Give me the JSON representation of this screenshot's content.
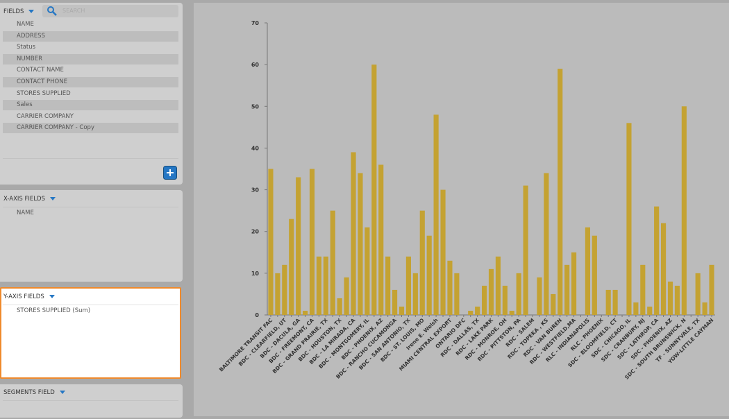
{
  "sidebar": {
    "fields_label": "FIELDS",
    "search_placeholder": "SEARCH",
    "fields": [
      "NAME",
      "ADDRESS",
      "Status",
      "NUMBER",
      "CONTACT NAME",
      "CONTACT PHONE",
      "STORES SUPPLIED",
      "Sales",
      "CARRIER COMPANY",
      "CARRIER COMPANY - Copy"
    ],
    "x_axis": {
      "title": "X-AXIS FIELDS",
      "items": [
        "NAME"
      ]
    },
    "y_axis": {
      "title": "Y-AXIS FIELDS",
      "items": [
        "STORES SUPPLIED (Sum)"
      ]
    },
    "segments": {
      "title": "SEGMENTS FIELD"
    }
  },
  "chart_data": {
    "type": "bar",
    "color": "#c4a232",
    "categories": [
      "BALTIMORE TRANSIT FAC",
      null,
      "BDC - CLEARFIELD, UT",
      null,
      "BDC - DACULA, GA",
      null,
      "BDC - FREEMONT, CA",
      null,
      "BDC - GRAND PRAIRIE, TX",
      null,
      "BDC - HOUSTON, TX",
      null,
      "BDC - LA MIRADA, CA",
      null,
      "BDC - MONTGOMERY, IL",
      null,
      "BDC - PHOENIX, AZ",
      null,
      "BDC - RANCHO CUCAMONGA",
      null,
      "BDC - SAN ANTONIO, TX",
      null,
      "BDC - ST. LOUIS, MO",
      null,
      "Irene E. Welsh",
      null,
      "MIAMI CENTRAL EXPORT",
      null,
      "ONTARIO DFC",
      null,
      "RDC - DALLAS, TX",
      null,
      "RDC - LAKE PARK",
      null,
      "RDC - MONROE, OH",
      null,
      "RDC - PITTSTON, PA",
      null,
      "RDC - SALEM",
      null,
      "RDC - TOPEKA , KS",
      null,
      "RDC - VAN BUREN",
      null,
      "RDC - WESTFIELD,MA",
      null,
      "RLC - INDIANAPOLIS",
      null,
      "RLC - PHOENIX",
      null,
      "SDC - BLOOMFIELD, CT",
      null,
      "SDC - CHICAGO, IL",
      null,
      "SDC - CRANBURY, NJ",
      null,
      "SDC - LATHROP, CA",
      null,
      "SDC - PHOENIX, AZ",
      null,
      "SDC - SOUTH BRUNSWICK, N",
      null,
      "TF - SUNNYVALE, TX",
      null,
      "YOW-LITTLE CAYMAN"
    ],
    "values": [
      35,
      10,
      12,
      23,
      33,
      1,
      35,
      14,
      14,
      25,
      4,
      9,
      39,
      34,
      21,
      60,
      36,
      14,
      6,
      2,
      14,
      10,
      25,
      19,
      48,
      30,
      13,
      10,
      0,
      1,
      2,
      7,
      11,
      14,
      7,
      1,
      10,
      31,
      0,
      9,
      34,
      5,
      59,
      12,
      15,
      0,
      21,
      19,
      0,
      6,
      6,
      0,
      46,
      3,
      12,
      2,
      26,
      22,
      8,
      7,
      50,
      0,
      10,
      3,
      12
    ],
    "ylim": [
      0,
      70
    ],
    "yticks": [
      0,
      10,
      20,
      30,
      40,
      50,
      60,
      70
    ]
  }
}
